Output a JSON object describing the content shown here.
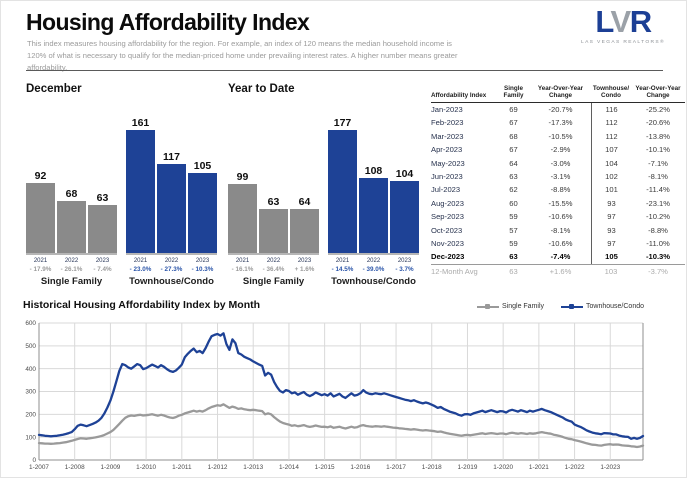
{
  "header": {
    "title": "Housing Affordability Index",
    "subtitle": "This index measures housing affordability for the region. For example, an index of 120 means the median household income is 120% of what is necessary to qualify for the median-priced home under prevailing interest rates. A higher number means greater affordability.",
    "logo": {
      "l": "L",
      "v": "V",
      "r": "R",
      "subtext": "LAS VEGAS REALTORS®"
    }
  },
  "colors": {
    "bar_blue": "#1e4296",
    "bar_gray": "#8a8a8a",
    "line_blue": "#1e4296",
    "line_gray": "#9a9a9a",
    "pct_gray": "#9a9a9a",
    "pct_blue": "#2b55a9",
    "navy_text": "#263457"
  },
  "chart_data": [
    {
      "type": "bar",
      "title": "December",
      "categories": [
        "2021",
        "2022",
        "2023"
      ],
      "series": [
        {
          "name": "Single Family",
          "color": "#8a8a8a",
          "change_color": "#9a9a9a",
          "values": [
            92,
            68,
            63
          ],
          "changes": [
            "- 17.9%",
            "- 26.1%",
            "- 7.4%"
          ]
        },
        {
          "name": "Townhouse/Condo",
          "color": "#1e4296",
          "change_color": "#2b55a9",
          "values": [
            161,
            117,
            105
          ],
          "changes": [
            "- 23.0%",
            "- 27.3%",
            "- 10.3%"
          ]
        }
      ]
    },
    {
      "type": "bar",
      "title": "Year to Date",
      "categories": [
        "2021",
        "2022",
        "2023"
      ],
      "series": [
        {
          "name": "Single Family",
          "color": "#8a8a8a",
          "change_color": "#9a9a9a",
          "values": [
            99,
            63,
            64
          ],
          "changes": [
            "- 16.1%",
            "- 36.4%",
            "+ 1.6%"
          ]
        },
        {
          "name": "Townhouse/Condo",
          "color": "#1e4296",
          "change_color": "#2b55a9",
          "values": [
            177,
            108,
            104
          ],
          "changes": [
            "- 14.5%",
            "- 39.0%",
            "- 3.7%"
          ]
        }
      ]
    },
    {
      "type": "line",
      "title": "Historical Housing Affordability Index by Month",
      "ylim": [
        0,
        600
      ],
      "yticks": [
        0,
        100,
        200,
        300,
        400,
        500,
        600
      ],
      "grid": true,
      "legend_position": "top-right",
      "x_tick_labels": [
        "1-2007",
        "1-2008",
        "1-2009",
        "1-2010",
        "1-2011",
        "1-2012",
        "1-2013",
        "1-2014",
        "1-2015",
        "1-2016",
        "1-2017",
        "1-2018",
        "1-2019",
        "1-2020",
        "1-2021",
        "1-2022",
        "1-2023"
      ],
      "months_start": "2007-01",
      "months_end": "2023-12",
      "series": [
        {
          "name": "Single Family",
          "color": "#9a9a9a",
          "values": [
            74,
            73,
            72,
            72,
            71,
            72,
            73,
            74,
            76,
            78,
            81,
            84,
            88,
            92,
            95,
            94,
            93,
            95,
            97,
            99,
            102,
            105,
            110,
            116,
            122,
            132,
            145,
            158,
            172,
            185,
            192,
            195,
            193,
            196,
            198,
            195,
            196,
            198,
            200,
            197,
            194,
            198,
            195,
            190,
            186,
            184,
            188,
            194,
            198,
            204,
            208,
            212,
            216,
            212,
            215,
            212,
            218,
            226,
            232,
            236,
            240,
            238,
            244,
            236,
            228,
            234,
            230,
            224,
            226,
            222,
            220,
            218,
            220,
            218,
            216,
            214,
            200,
            204,
            200,
            188,
            178,
            168,
            162,
            158,
            155,
            150,
            152,
            148,
            150,
            153,
            148,
            145,
            147,
            151,
            148,
            145,
            146,
            143,
            147,
            141,
            143,
            146,
            141,
            138,
            142,
            146,
            142,
            144,
            150,
            153,
            149,
            147,
            146,
            148,
            147,
            146,
            148,
            146,
            144,
            142,
            141,
            139,
            138,
            136,
            135,
            133,
            135,
            133,
            131,
            129,
            131,
            129,
            128,
            126,
            123,
            125,
            121,
            118,
            115,
            113,
            111,
            108,
            106,
            109,
            110,
            108,
            111,
            113,
            115,
            117,
            114,
            116,
            118,
            116,
            114,
            116,
            116,
            113,
            117,
            119,
            117,
            115,
            118,
            116,
            114,
            117,
            115,
            117,
            120,
            122,
            119,
            117,
            115,
            111,
            108,
            105,
            101,
            97,
            93,
            91,
            87,
            84,
            81,
            77,
            73,
            70,
            67,
            66,
            64,
            63,
            66,
            68,
            69,
            67,
            68,
            67,
            64,
            63,
            62,
            60,
            59,
            57,
            59,
            63
          ]
        },
        {
          "name": "Townhouse/Condo",
          "color": "#1e4296",
          "values": [
            110,
            108,
            106,
            105,
            104,
            105,
            106,
            108,
            111,
            114,
            118,
            122,
            135,
            150,
            155,
            152,
            148,
            153,
            158,
            164,
            172,
            185,
            205,
            230,
            260,
            300,
            345,
            390,
            420,
            415,
            405,
            400,
            410,
            420,
            415,
            398,
            402,
            410,
            418,
            412,
            405,
            415,
            408,
            398,
            390,
            386,
            392,
            404,
            418,
            450,
            465,
            478,
            488,
            472,
            478,
            468,
            490,
            518,
            542,
            548,
            552,
            545,
            555,
            508,
            482,
            528,
            512,
            468,
            462,
            452,
            446,
            440,
            432,
            425,
            418,
            412,
            370,
            382,
            374,
            342,
            320,
            302,
            296,
            306,
            302,
            292,
            296,
            286,
            292,
            298,
            286,
            280,
            286,
            296,
            290,
            284,
            288,
            282,
            292,
            278,
            284,
            290,
            278,
            272,
            282,
            292,
            282,
            285,
            292,
            306,
            295,
            290,
            288,
            292,
            290,
            288,
            292,
            288,
            284,
            280,
            276,
            272,
            268,
            264,
            262,
            258,
            262,
            256,
            252,
            248,
            252,
            248,
            242,
            236,
            228,
            232,
            224,
            218,
            212,
            208,
            204,
            198,
            194,
            200,
            201,
            198,
            204,
            208,
            212,
            216,
            210,
            214,
            218,
            214,
            210,
            214,
            213,
            208,
            216,
            220,
            216,
            212,
            218,
            214,
            210,
            216,
            212,
            216,
            220,
            224,
            218,
            214,
            210,
            204,
            198,
            192,
            186,
            178,
            172,
            168,
            155,
            150,
            145,
            138,
            130,
            125,
            120,
            117,
            115,
            113,
            118,
            117,
            116,
            112,
            112,
            107,
            104,
            102,
            101,
            93,
            97,
            93,
            97,
            105
          ]
        }
      ]
    }
  ],
  "table": {
    "headers": [
      "Affordability Index",
      "Single\nFamily",
      "Year-Over-Year\nChange",
      "Townhouse/\nCondo",
      "Year-Over-Year\nChange"
    ],
    "rows": [
      [
        "Jan-2023",
        "69",
        "-20.7%",
        "116",
        "-25.2%"
      ],
      [
        "Feb-2023",
        "67",
        "-17.3%",
        "112",
        "-20.6%"
      ],
      [
        "Mar-2023",
        "68",
        "-10.5%",
        "112",
        "-13.8%"
      ],
      [
        "Apr-2023",
        "67",
        "-2.9%",
        "107",
        "-10.1%"
      ],
      [
        "May-2023",
        "64",
        "-3.0%",
        "104",
        "-7.1%"
      ],
      [
        "Jun-2023",
        "63",
        "-3.1%",
        "102",
        "-8.1%"
      ],
      [
        "Jul-2023",
        "62",
        "-8.8%",
        "101",
        "-11.4%"
      ],
      [
        "Aug-2023",
        "60",
        "-15.5%",
        "93",
        "-23.1%"
      ],
      [
        "Sep-2023",
        "59",
        "-10.6%",
        "97",
        "-10.2%"
      ],
      [
        "Oct-2023",
        "57",
        "-8.1%",
        "93",
        "-8.8%"
      ],
      [
        "Nov-2023",
        "59",
        "-10.6%",
        "97",
        "-11.0%"
      ],
      [
        "Dec-2023",
        "63",
        "-7.4%",
        "105",
        "-10.3%"
      ]
    ],
    "avg_row": [
      "12-Month Avg",
      "63",
      "+1.6%",
      "103",
      "-3.7%"
    ]
  }
}
